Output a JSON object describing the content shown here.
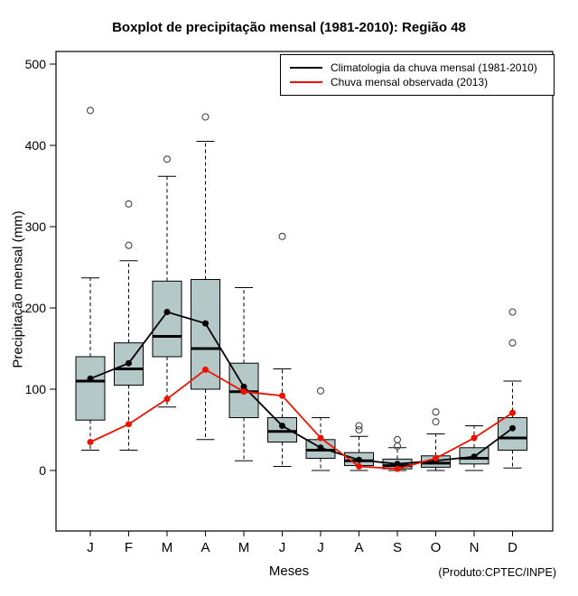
{
  "chart_data": {
    "type": "boxplot",
    "title": "Boxplot de precipitação mensal (1981-2010): Região 48",
    "xlabel": "Meses",
    "ylabel": "Precipitação mensal (mm)",
    "source_note": "(Produto:CPTEC/INPE)",
    "ylim": [
      0,
      500
    ],
    "yticks": [
      0,
      100,
      200,
      300,
      400,
      500
    ],
    "grid": false,
    "legend_position": "top-right",
    "box_fill": "#b4c8c8",
    "categories": [
      "J",
      "F",
      "M",
      "A",
      "M",
      "J",
      "J",
      "A",
      "S",
      "O",
      "N",
      "D"
    ],
    "boxes": [
      {
        "low": 25,
        "q1": 62,
        "median": 110,
        "q3": 140,
        "high": 237,
        "outliers": [
          443
        ]
      },
      {
        "low": 25,
        "q1": 105,
        "median": 125,
        "q3": 157,
        "high": 258,
        "outliers": [
          277,
          328
        ]
      },
      {
        "low": 78,
        "q1": 140,
        "median": 165,
        "q3": 233,
        "high": 362,
        "outliers": [
          383
        ]
      },
      {
        "low": 38,
        "q1": 100,
        "median": 150,
        "q3": 235,
        "high": 405,
        "outliers": [
          435
        ]
      },
      {
        "low": 12,
        "q1": 65,
        "median": 97,
        "q3": 132,
        "high": 225,
        "outliers": []
      },
      {
        "low": 5,
        "q1": 35,
        "median": 48,
        "q3": 65,
        "high": 125,
        "outliers": [
          288
        ]
      },
      {
        "low": 0,
        "q1": 15,
        "median": 25,
        "q3": 38,
        "high": 65,
        "outliers": [
          98
        ]
      },
      {
        "low": 0,
        "q1": 6,
        "median": 12,
        "q3": 22,
        "high": 42,
        "outliers": [
          50,
          55
        ]
      },
      {
        "low": 0,
        "q1": 2,
        "median": 6,
        "q3": 14,
        "high": 28,
        "outliers": [
          30,
          38
        ]
      },
      {
        "low": 0,
        "q1": 4,
        "median": 9,
        "q3": 18,
        "high": 45,
        "outliers": [
          60,
          72
        ]
      },
      {
        "low": 0,
        "q1": 8,
        "median": 15,
        "q3": 28,
        "high": 55,
        "outliers": []
      },
      {
        "low": 3,
        "q1": 25,
        "median": 40,
        "q3": 65,
        "high": 110,
        "outliers": [
          157,
          195
        ]
      }
    ],
    "series": [
      {
        "name": "Climatologia da chuva mensal (1981-2010)",
        "color": "#000000",
        "values": [
          113,
          132,
          195,
          181,
          103,
          55,
          28,
          13,
          8,
          12,
          17,
          52
        ]
      },
      {
        "name": "Chuva mensal observada (2013)",
        "color": "#ee1100",
        "values": [
          35,
          57,
          88,
          124,
          97,
          92,
          40,
          5,
          2,
          15,
          40,
          71
        ]
      }
    ]
  }
}
